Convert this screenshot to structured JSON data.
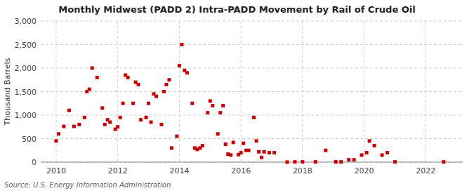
{
  "chart_data": {
    "type": "scatter",
    "title": "Monthly Midwest (PADD 2) Intra-PADD Movement by Rail of Crude Oil",
    "ylabel": "Thousand Barrels",
    "source": "Source: U.S. Energy Information Administration",
    "color": "#cc0000",
    "marker": "square",
    "grid": true,
    "xlim": [
      2009.5,
      2023.2
    ],
    "xticks": [
      2010,
      2012,
      2014,
      2016,
      2018,
      2020,
      2022
    ],
    "ylim": [
      0,
      3000
    ],
    "yticks": [
      0,
      500,
      {
        "value": 1000,
        "label": "1,000"
      },
      {
        "value": 1500,
        "label": "1,500"
      },
      {
        "value": 2000,
        "label": "2,000"
      },
      {
        "value": 2500,
        "label": "2,500"
      },
      {
        "value": 3000,
        "label": "3,000"
      }
    ],
    "x": [
      2010.0,
      2010.08,
      2010.25,
      2010.42,
      2010.58,
      2010.75,
      2010.92,
      2011.0,
      2011.08,
      2011.17,
      2011.33,
      2011.5,
      2011.58,
      2011.67,
      2011.75,
      2011.92,
      2012.0,
      2012.08,
      2012.17,
      2012.25,
      2012.33,
      2012.5,
      2012.58,
      2012.67,
      2012.75,
      2012.92,
      2013.0,
      2013.08,
      2013.17,
      2013.25,
      2013.42,
      2013.5,
      2013.58,
      2013.67,
      2013.75,
      2013.92,
      2014.0,
      2014.08,
      2014.17,
      2014.25,
      2014.42,
      2014.5,
      2014.58,
      2014.67,
      2014.75,
      2014.92,
      2015.0,
      2015.08,
      2015.25,
      2015.33,
      2015.42,
      2015.5,
      2015.58,
      2015.67,
      2015.75,
      2015.92,
      2016.0,
      2016.08,
      2016.17,
      2016.25,
      2016.42,
      2016.5,
      2016.58,
      2016.67,
      2016.75,
      2016.92,
      2017.08,
      2017.5,
      2017.75,
      2018.0,
      2018.42,
      2018.75,
      2019.08,
      2019.25,
      2019.5,
      2019.67,
      2019.92,
      2020.08,
      2020.17,
      2020.33,
      2020.58,
      2020.75,
      2021.0,
      2022.58
    ],
    "values": [
      450,
      600,
      760,
      1100,
      760,
      800,
      950,
      1500,
      1550,
      2000,
      1800,
      1150,
      800,
      900,
      850,
      700,
      750,
      950,
      1250,
      1850,
      1800,
      1250,
      1700,
      1650,
      900,
      950,
      1250,
      850,
      1450,
      1400,
      800,
      1500,
      1650,
      1750,
      300,
      550,
      2050,
      2500,
      1950,
      1900,
      1250,
      300,
      270,
      300,
      350,
      1050,
      1300,
      1200,
      600,
      1050,
      1200,
      380,
      170,
      150,
      420,
      160,
      200,
      400,
      250,
      250,
      950,
      450,
      220,
      100,
      220,
      200,
      200,
      0,
      5,
      5,
      5,
      250,
      5,
      5,
      50,
      50,
      150,
      200,
      450,
      350,
      150,
      200,
      5,
      5
    ]
  }
}
